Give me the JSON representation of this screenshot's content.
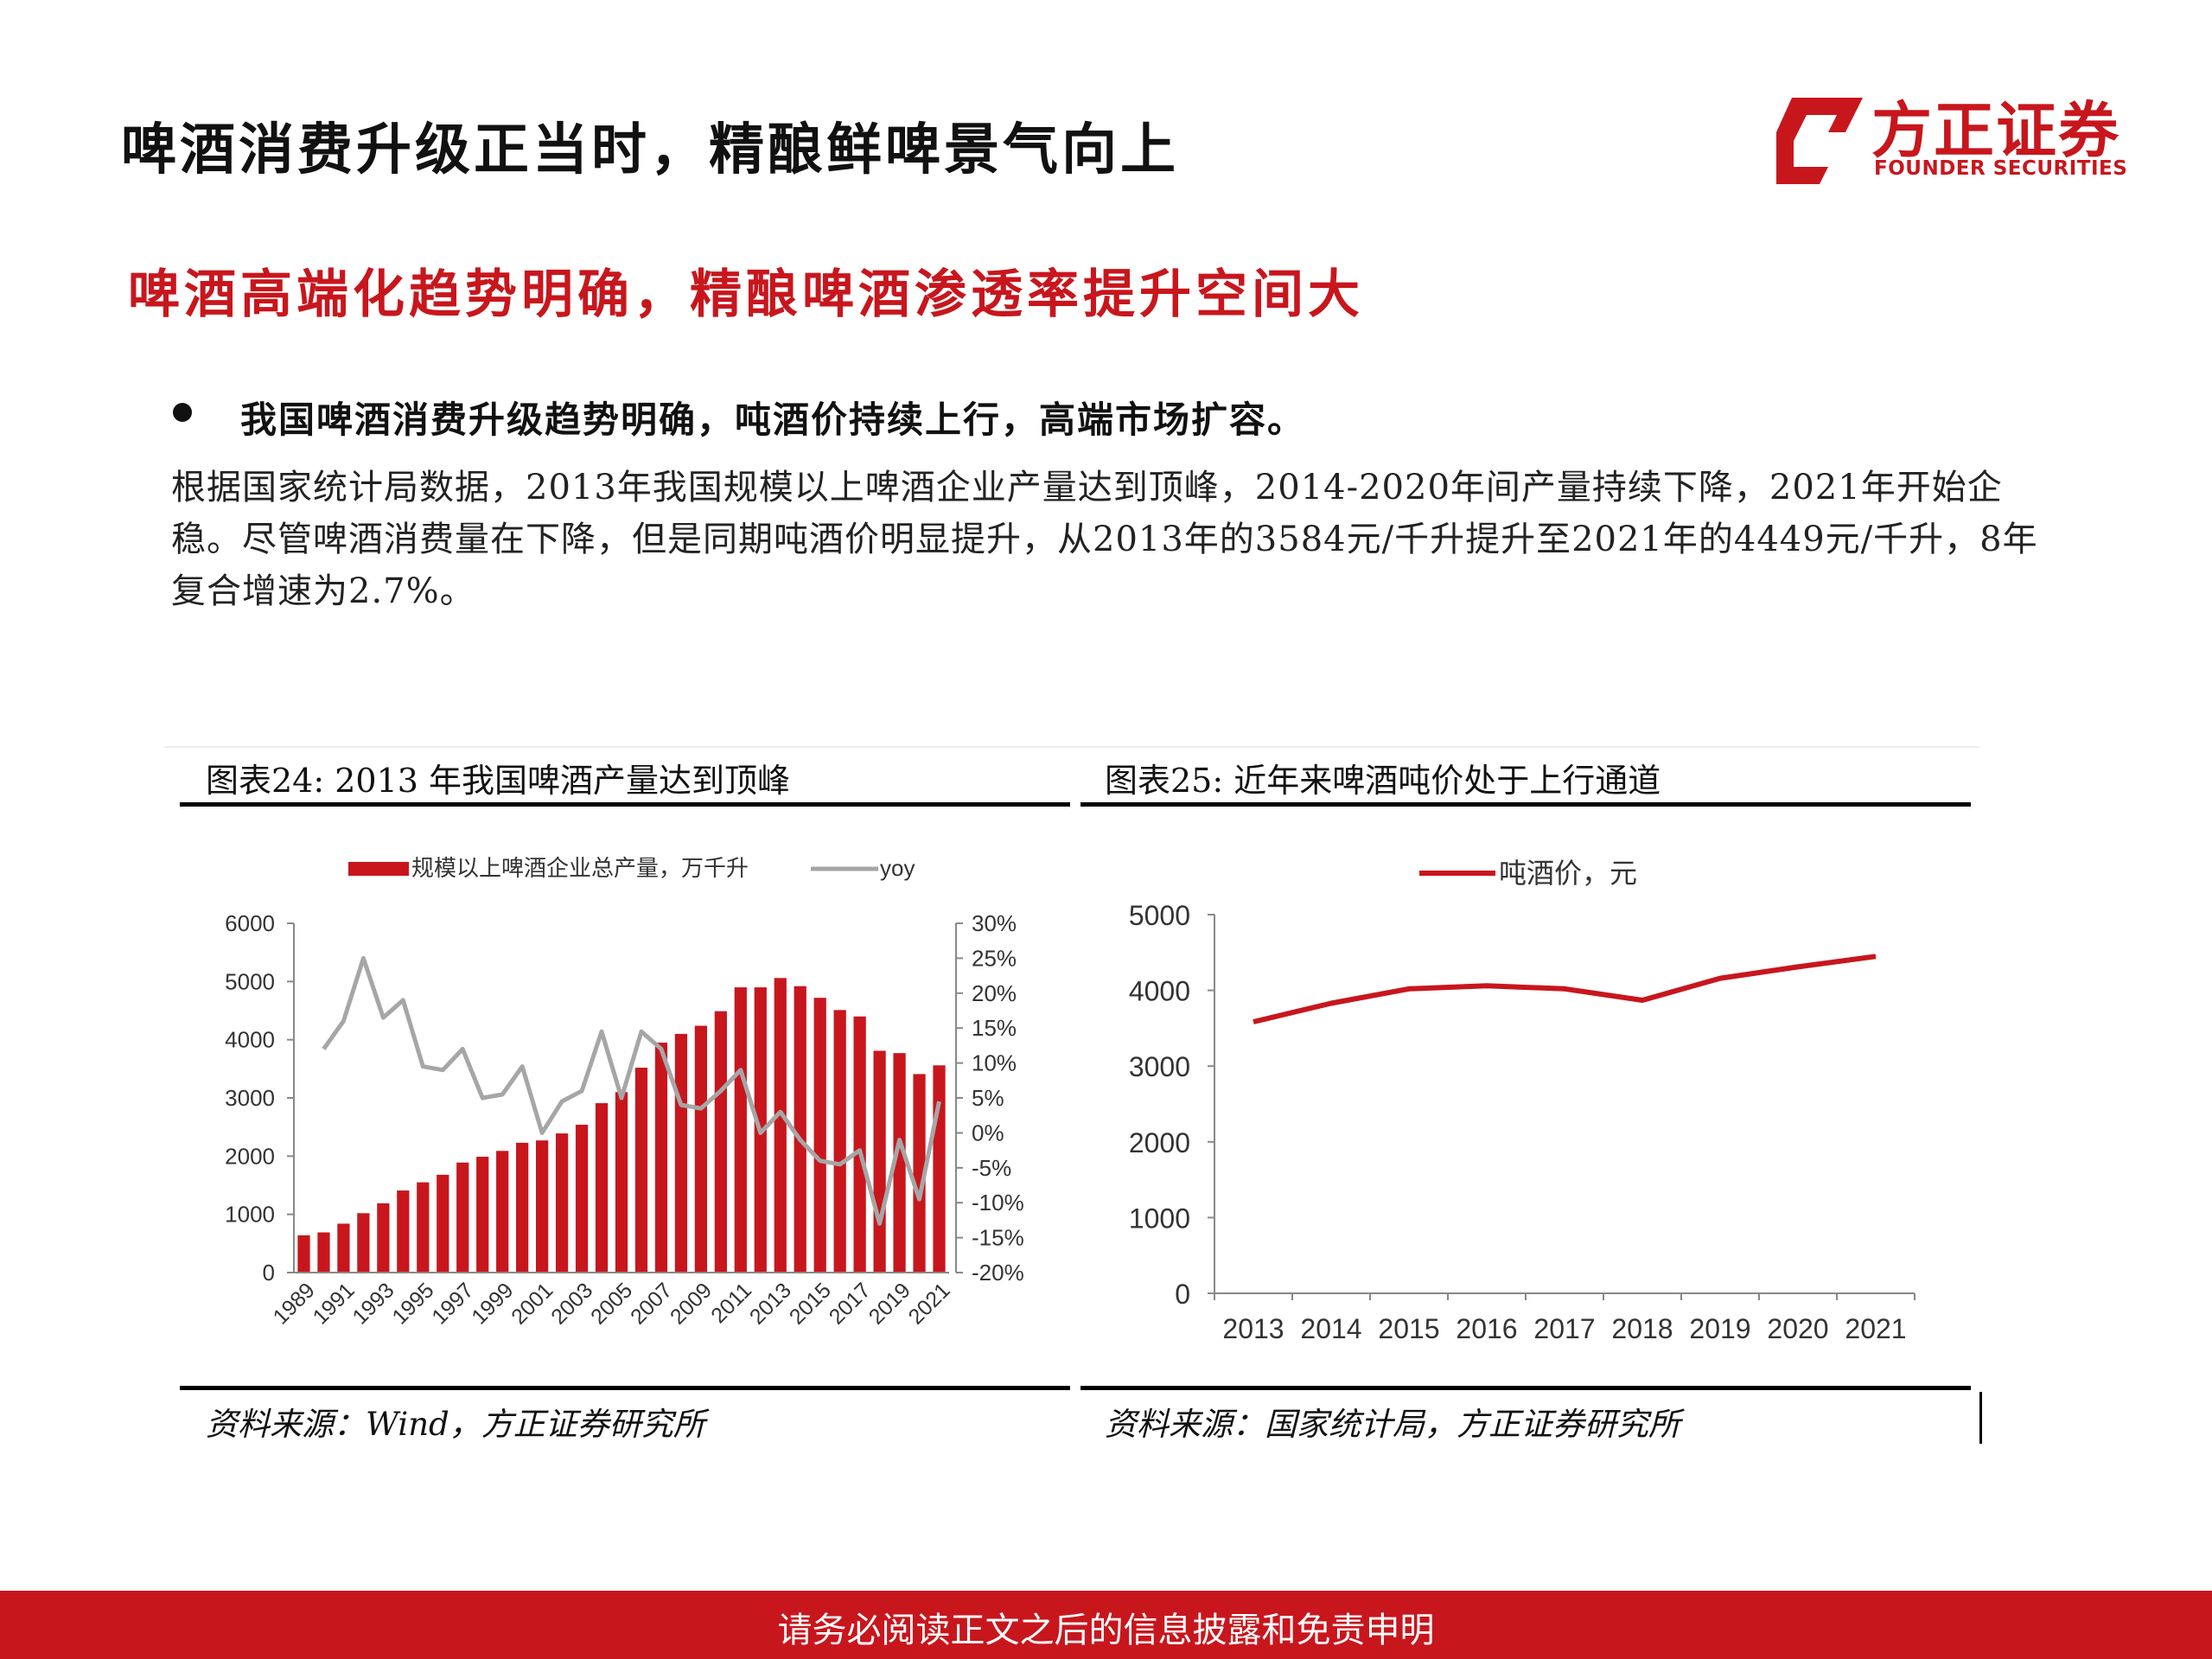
{
  "page": {
    "title": "啤酒消费升级正当时，精酿鲜啤景气向上",
    "subtitle": "啤酒高端化趋势明确，精酿啤酒渗透率提升空间大",
    "bullet": "我国啤酒消费升级趋势明确，吨酒价持续上行，高端市场扩容。",
    "paragraph": "根据国家统计局数据，2013年我国规模以上啤酒企业产量达到顶峰，2014-2020年间产量持续下降，2021年开始企稳。尽管啤酒消费量在下降，但是同期吨酒价明显提升，从2013年的3584元/千升提升至2021年的4449元/千升，8年复合增速为2.7%。",
    "footer": "请务必阅读正文之后的信息披露和免责申明"
  },
  "logo": {
    "cn": "方正证券",
    "en": "FOUNDER SECURITIES",
    "color": "#c8161d"
  },
  "figures": [
    {
      "title": "图表24:  2013 年我国啤酒产量达到顶峰",
      "source": "资料来源：Wind，方正证券研究所"
    },
    {
      "title": "图表25:  近年来啤酒吨价处于上行通道",
      "source": "资料来源：国家统计局，方正证券研究所"
    }
  ],
  "chart_data": [
    {
      "type": "bar",
      "x": [
        1989,
        1990,
        1991,
        1992,
        1993,
        1994,
        1995,
        1996,
        1997,
        1998,
        1999,
        2000,
        2001,
        2002,
        2003,
        2004,
        2005,
        2006,
        2007,
        2008,
        2009,
        2010,
        2011,
        2012,
        2013,
        2014,
        2015,
        2016,
        2017,
        2018,
        2019,
        2020,
        2021
      ],
      "x_tick_labels": [
        "1989",
        "1991",
        "1993",
        "1995",
        "1997",
        "1999",
        "2001",
        "2003",
        "2005",
        "2007",
        "2009",
        "2011",
        "2013",
        "2015",
        "2017",
        "2019",
        "2021"
      ],
      "series": [
        {
          "name": "规模以上啤酒企业总产量，万千升",
          "type": "bar",
          "axis": "left",
          "color": "#c8161d",
          "values": [
            640,
            690,
            840,
            1020,
            1190,
            1410,
            1550,
            1680,
            1890,
            1990,
            2090,
            2230,
            2270,
            2390,
            2540,
            2910,
            3100,
            3520,
            3950,
            4100,
            4240,
            4490,
            4900,
            4900,
            5060,
            4920,
            4720,
            4510,
            4400,
            3810,
            3770,
            3410,
            3560
          ]
        },
        {
          "name": "yoy",
          "type": "line",
          "axis": "right",
          "color": "#a6a6a6",
          "values": [
            null,
            12,
            16,
            25,
            16.5,
            19,
            9.5,
            9,
            12,
            5,
            5.5,
            9.5,
            0,
            4.5,
            6,
            14.5,
            5,
            14.5,
            12,
            4,
            3.5,
            6,
            9,
            0,
            3,
            -1,
            -4,
            -4.5,
            -2.5,
            -13,
            -1,
            -9.5,
            4.5
          ]
        }
      ],
      "ylim_left": [
        0,
        6000
      ],
      "yticks_left": [
        "0",
        "1000",
        "2000",
        "3000",
        "4000",
        "5000",
        "6000"
      ],
      "ylim_right": [
        -20,
        30
      ],
      "yticks_right": [
        "-20%",
        "-15%",
        "-10%",
        "-5%",
        "0%",
        "5%",
        "10%",
        "15%",
        "20%",
        "25%",
        "30%"
      ],
      "legend": "top-center"
    },
    {
      "type": "line",
      "x": [
        "2013",
        "2014",
        "2015",
        "2016",
        "2017",
        "2018",
        "2019",
        "2020",
        "2021"
      ],
      "series": [
        {
          "name": "吨酒价，元",
          "color": "#c8161d",
          "values": [
            3584,
            3830,
            4020,
            4060,
            4020,
            3870,
            4160,
            4310,
            4449
          ]
        }
      ],
      "ylim": [
        0,
        5000
      ],
      "yticks": [
        "0",
        "1000",
        "2000",
        "3000",
        "4000",
        "5000"
      ],
      "legend": "top-center"
    }
  ]
}
